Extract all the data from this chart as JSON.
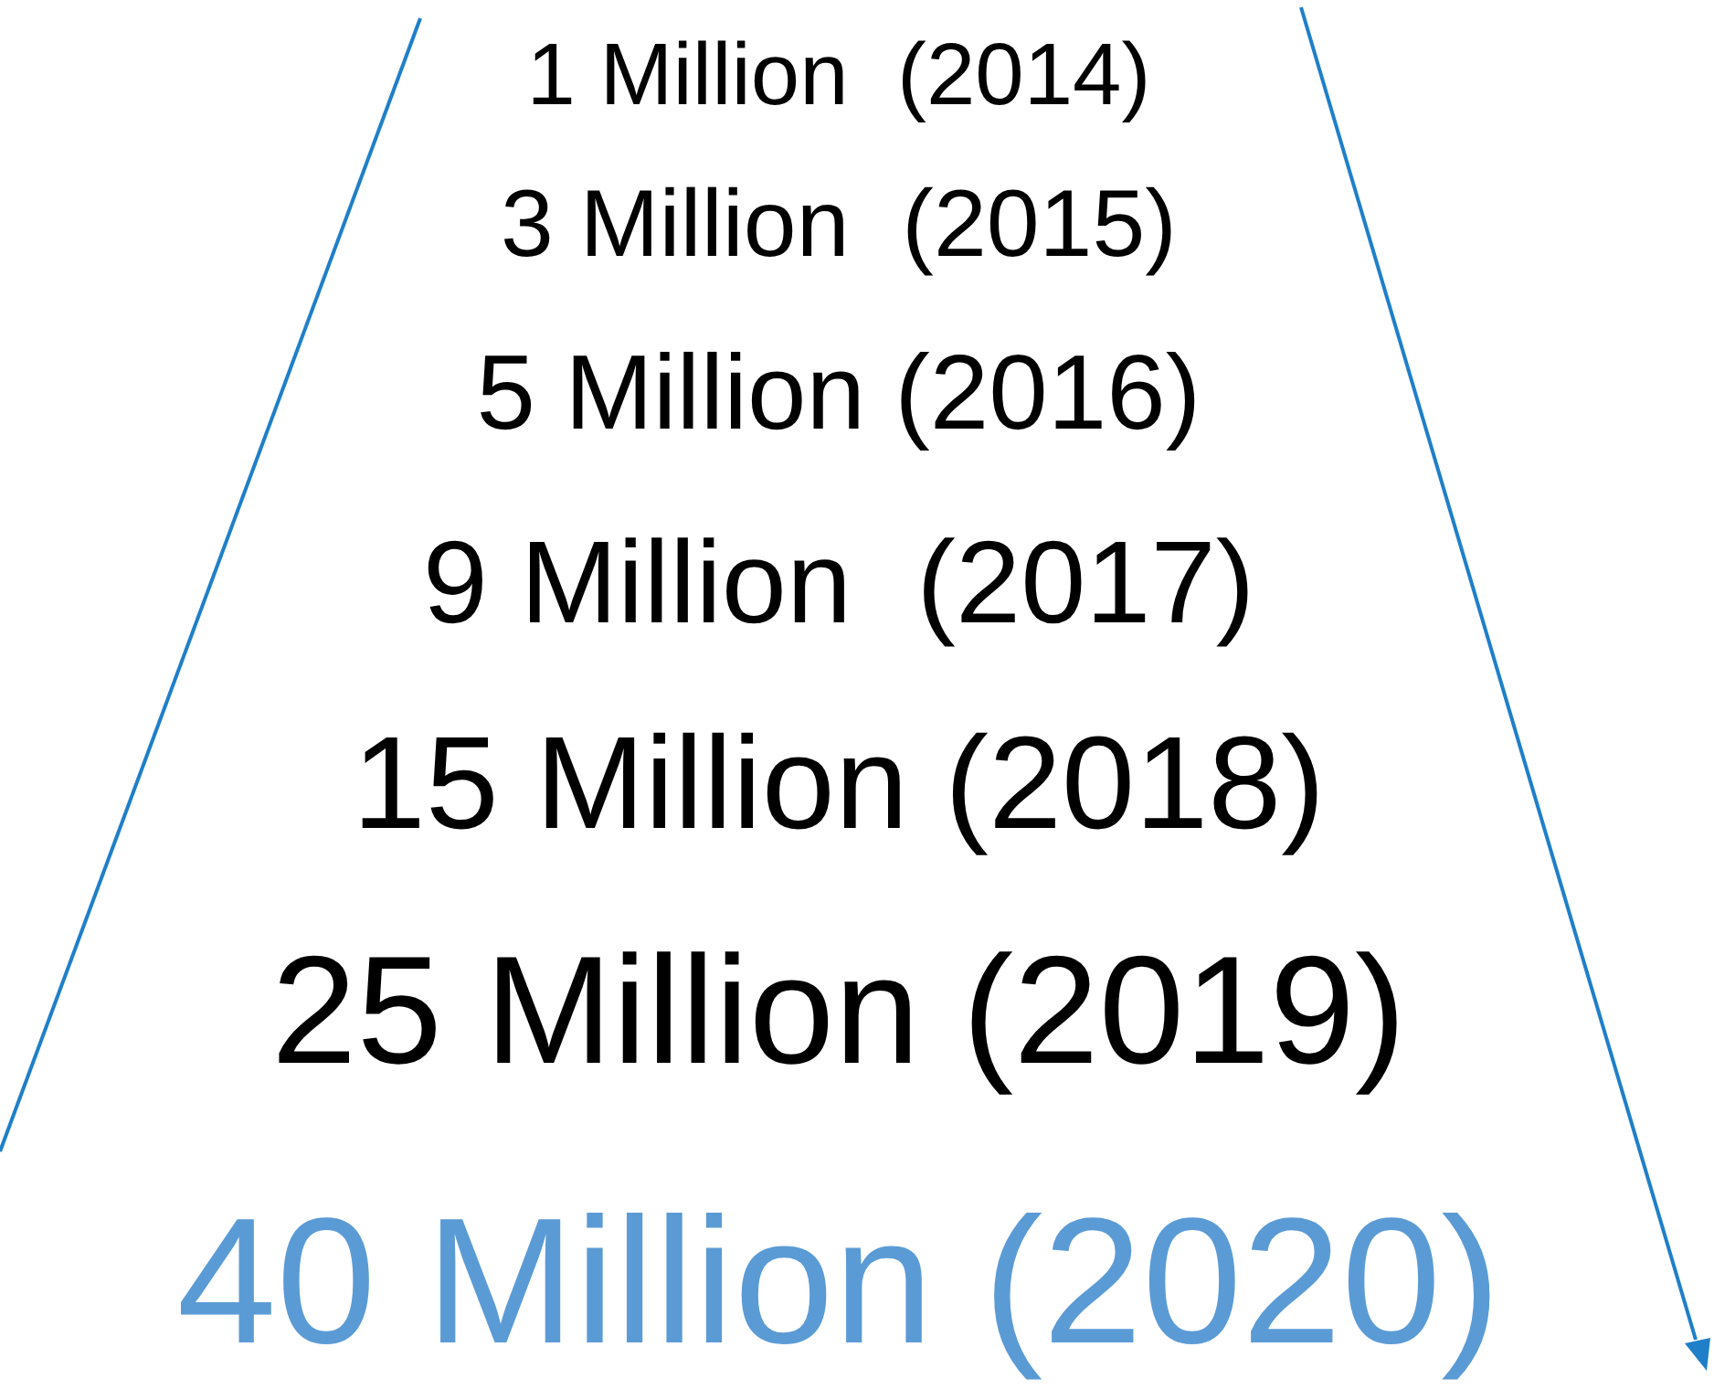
{
  "chart_data": {
    "type": "other",
    "categories": [
      "Million  (2014)",
      "Million  (2015)",
      "Million (2016)",
      "Million  (2017)",
      "Million (2018)",
      "Million (2019)",
      "Million (2020)"
    ],
    "values": [
      1,
      3,
      5,
      9,
      15,
      25,
      40
    ],
    "data_labels": true,
    "colors": [
      "#000000",
      "#000000",
      "#000000",
      "#000000",
      "#000000",
      "#000000",
      "#5b9bd5"
    ]
  }
}
